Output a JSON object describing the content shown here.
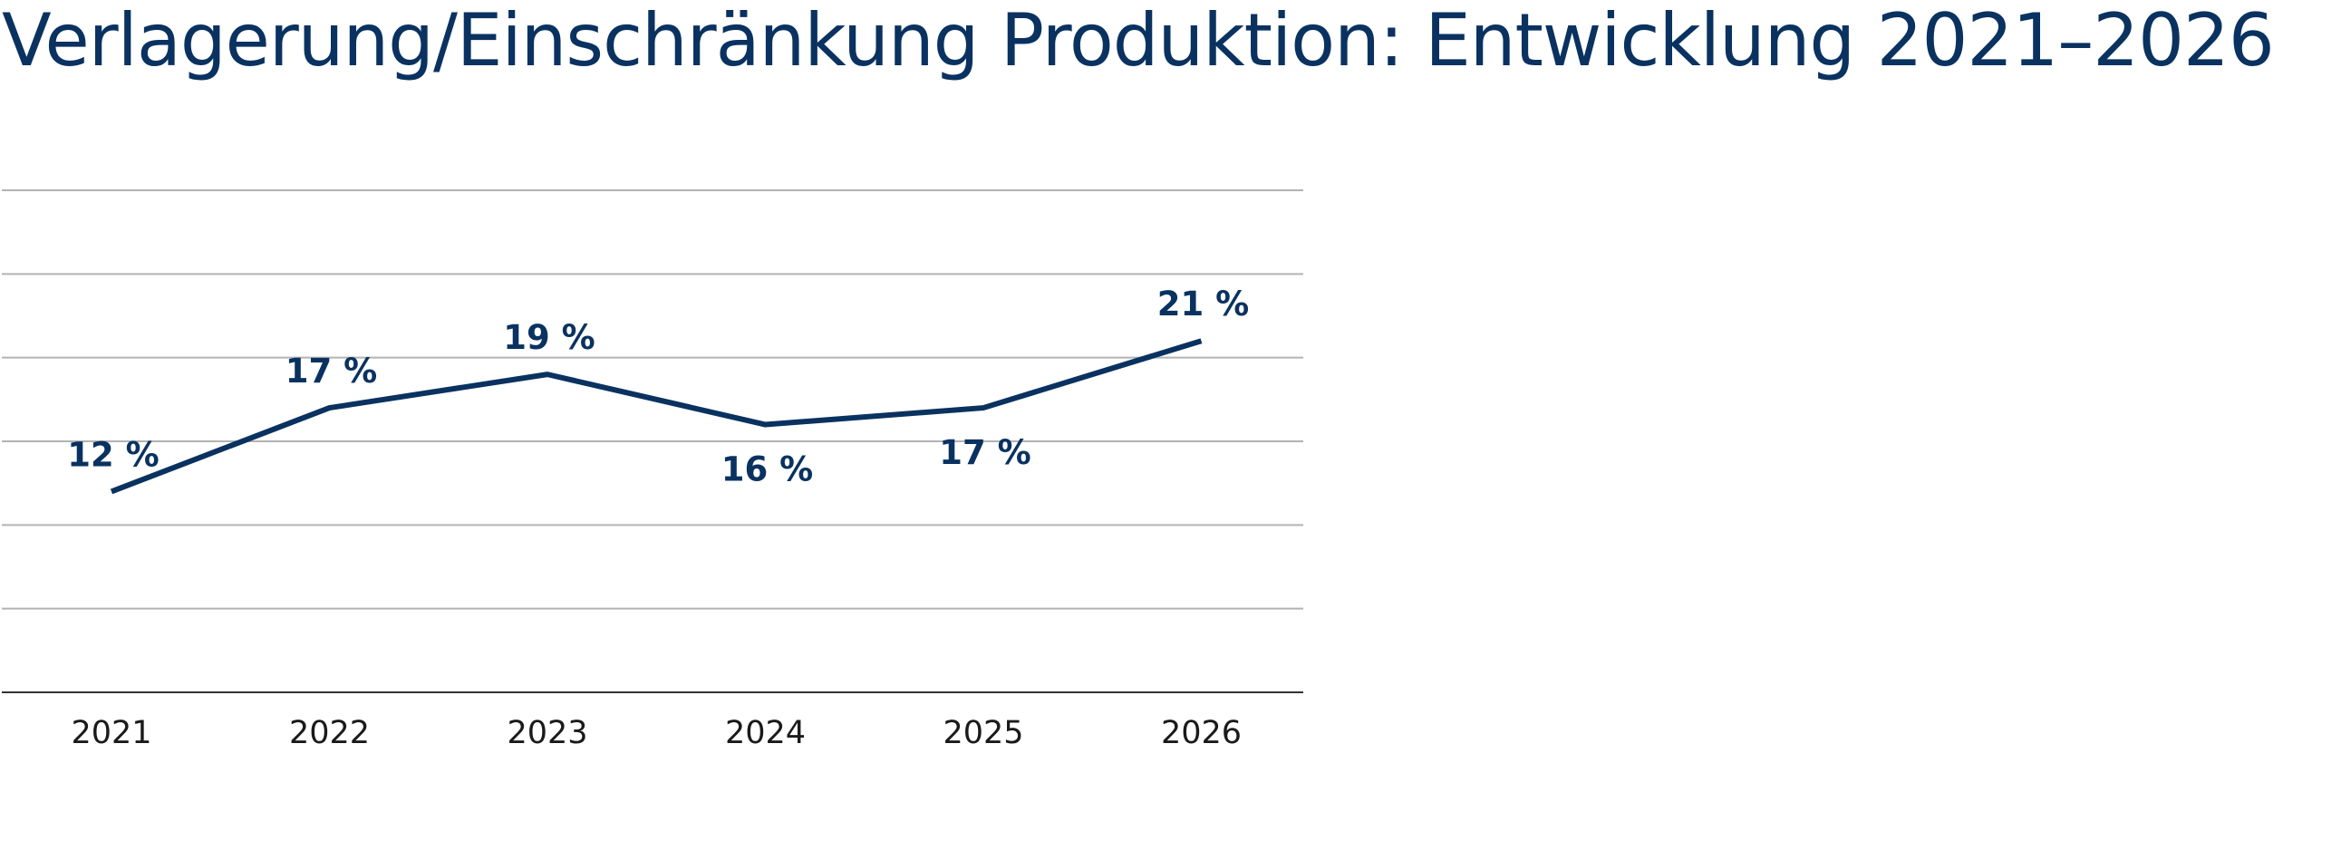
{
  "title": "Verlagerung/Einschränkung Produktion: Entwicklung 2021–2026",
  "colors": {
    "title": "#0a3260",
    "line": "#0a3260",
    "grid": "#b3b3b3",
    "axis": "#333333",
    "tick_text": "#1a1a1a"
  },
  "chart_data": {
    "type": "line",
    "title": "Verlagerung/Einschränkung Produktion: Entwicklung 2021–2026",
    "xlabel": "",
    "ylabel": "",
    "categories": [
      "2021",
      "2022",
      "2023",
      "2024",
      "2025",
      "2026"
    ],
    "series": [
      {
        "values": [
          12,
          17,
          19,
          16,
          17,
          21
        ],
        "labels": [
          "12 %",
          "17 %",
          "19 %",
          "16 %",
          "17 %",
          "21 %"
        ],
        "label_positions": [
          "above",
          "above",
          "above",
          "below",
          "below",
          "above"
        ]
      }
    ],
    "ylim": [
      0,
      30
    ],
    "y_gridlines": [
      0,
      5,
      10,
      15,
      20,
      25,
      30
    ],
    "y_tick_labels_visible": false,
    "grid": true,
    "legend": "none"
  }
}
